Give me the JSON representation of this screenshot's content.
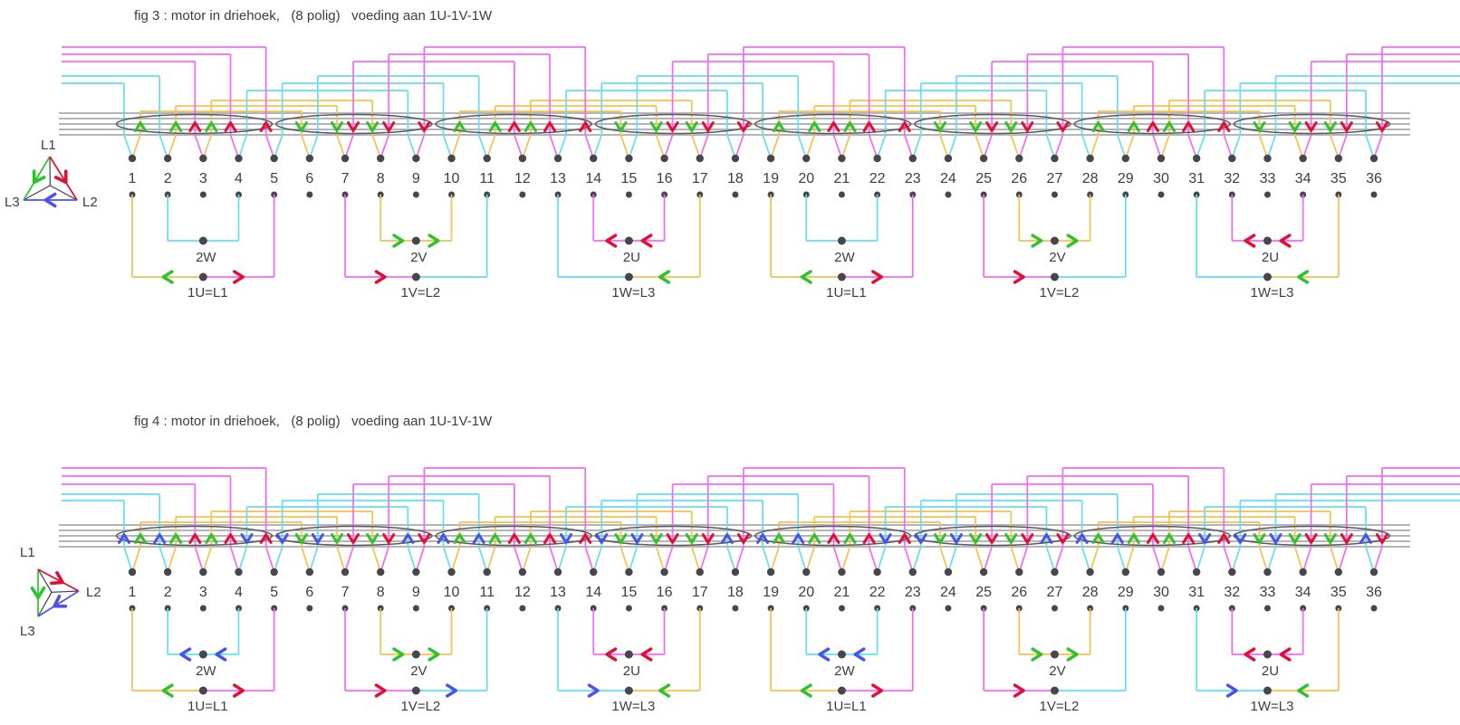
{
  "figures": [
    {
      "id": "fig3",
      "title": "fig 3 : motor in driehoek,   (8 polig)   voeding aan 1U-1V-1W",
      "cyan_band_arrows": false,
      "phasor": {
        "labels": {
          "l1": "L1",
          "l2": "L2",
          "l3": "L3"
        },
        "edges": [
          {
            "from": "L1",
            "to": "L3",
            "color": "green"
          },
          {
            "from": "L1",
            "to": "L2",
            "color": "red"
          },
          {
            "from": "L2",
            "to": "L3",
            "color": "blue"
          }
        ]
      },
      "groups": [
        {
          "base": 1,
          "bracket": {
            "label": "2W",
            "color": "cyan",
            "arrows": []
          },
          "line": {
            "label": "1U=L1",
            "left": "orange",
            "right": "magenta",
            "arrows": [
              {
                "at": 1,
                "dir": "left",
                "color": "green"
              },
              {
                "at": 3,
                "dir": "right",
                "color": "red"
              }
            ]
          }
        },
        {
          "base": 7,
          "bracket": {
            "label": "2V",
            "color": "orange",
            "arrows": [
              {
                "at": 1.5,
                "dir": "right",
                "color": "green"
              },
              {
                "at": 2.5,
                "dir": "right",
                "color": "green"
              }
            ]
          },
          "line": {
            "label": "1V=L2",
            "left": "magenta",
            "right": "cyan",
            "arrows": [
              {
                "at": 1,
                "dir": "right",
                "color": "red"
              }
            ]
          }
        },
        {
          "base": 13,
          "bracket": {
            "label": "2U",
            "color": "magenta",
            "arrows": [
              {
                "at": 1.5,
                "dir": "left",
                "color": "red"
              },
              {
                "at": 2.5,
                "dir": "left",
                "color": "red"
              }
            ]
          },
          "line": {
            "label": "1W=L3",
            "left": "cyan",
            "right": "orange",
            "arrows": [
              {
                "at": 3,
                "dir": "left",
                "color": "green"
              }
            ]
          }
        },
        {
          "base": 19,
          "bracket": {
            "label": "2W",
            "color": "cyan",
            "arrows": []
          },
          "line": {
            "label": "1U=L1",
            "left": "orange",
            "right": "magenta",
            "arrows": [
              {
                "at": 1,
                "dir": "left",
                "color": "green"
              },
              {
                "at": 3,
                "dir": "right",
                "color": "red"
              }
            ]
          }
        },
        {
          "base": 25,
          "bracket": {
            "label": "2V",
            "color": "orange",
            "arrows": [
              {
                "at": 1.5,
                "dir": "right",
                "color": "green"
              },
              {
                "at": 2.5,
                "dir": "right",
                "color": "green"
              }
            ]
          },
          "line": {
            "label": "1V=L2",
            "left": "magenta",
            "right": "cyan",
            "arrows": [
              {
                "at": 1,
                "dir": "right",
                "color": "red"
              }
            ]
          }
        },
        {
          "base": 31,
          "bracket": {
            "label": "2U",
            "color": "magenta",
            "arrows": [
              {
                "at": 1.5,
                "dir": "left",
                "color": "red"
              },
              {
                "at": 2.5,
                "dir": "left",
                "color": "red"
              }
            ]
          },
          "line": {
            "label": "1W=L3",
            "left": "cyan",
            "right": "orange",
            "arrows": [
              {
                "at": 3,
                "dir": "left",
                "color": "green"
              }
            ]
          }
        }
      ]
    },
    {
      "id": "fig4",
      "title": "fig 4 : motor in driehoek,   (8 polig)   voeding aan 1U-1V-1W",
      "cyan_band_arrows": true,
      "phasor": {
        "labels": {
          "l1": "L1",
          "l2": "L2",
          "l3": "L3"
        },
        "edges": [
          {
            "from": "L1",
            "to": "L3",
            "color": "green"
          },
          {
            "from": "L1",
            "to": "L2",
            "color": "red"
          },
          {
            "from": "L2",
            "to": "L3",
            "color": "blue"
          }
        ]
      },
      "groups": [
        {
          "base": 1,
          "bracket": {
            "label": "2W",
            "color": "cyan",
            "arrows": [
              {
                "at": 1.5,
                "dir": "left",
                "color": "blue"
              },
              {
                "at": 2.5,
                "dir": "left",
                "color": "blue"
              }
            ]
          },
          "line": {
            "label": "1U=L1",
            "left": "orange",
            "right": "magenta",
            "arrows": [
              {
                "at": 1,
                "dir": "left",
                "color": "green"
              },
              {
                "at": 3,
                "dir": "right",
                "color": "red"
              }
            ]
          }
        },
        {
          "base": 7,
          "bracket": {
            "label": "2V",
            "color": "orange",
            "arrows": [
              {
                "at": 1.5,
                "dir": "right",
                "color": "green"
              },
              {
                "at": 2.5,
                "dir": "right",
                "color": "green"
              }
            ]
          },
          "line": {
            "label": "1V=L2",
            "left": "magenta",
            "right": "cyan",
            "arrows": [
              {
                "at": 1,
                "dir": "right",
                "color": "red"
              },
              {
                "at": 3,
                "dir": "right",
                "color": "blue"
              }
            ]
          }
        },
        {
          "base": 13,
          "bracket": {
            "label": "2U",
            "color": "magenta",
            "arrows": [
              {
                "at": 1.5,
                "dir": "left",
                "color": "red"
              },
              {
                "at": 2.5,
                "dir": "left",
                "color": "red"
              }
            ]
          },
          "line": {
            "label": "1W=L3",
            "left": "cyan",
            "right": "orange",
            "arrows": [
              {
                "at": 1,
                "dir": "right",
                "color": "blue"
              },
              {
                "at": 3,
                "dir": "left",
                "color": "green"
              }
            ]
          }
        },
        {
          "base": 19,
          "bracket": {
            "label": "2W",
            "color": "cyan",
            "arrows": [
              {
                "at": 1.5,
                "dir": "left",
                "color": "blue"
              },
              {
                "at": 2.5,
                "dir": "left",
                "color": "blue"
              }
            ]
          },
          "line": {
            "label": "1U=L1",
            "left": "orange",
            "right": "magenta",
            "arrows": [
              {
                "at": 1,
                "dir": "left",
                "color": "green"
              },
              {
                "at": 3,
                "dir": "right",
                "color": "red"
              }
            ]
          }
        },
        {
          "base": 25,
          "bracket": {
            "label": "2V",
            "color": "orange",
            "arrows": [
              {
                "at": 1.5,
                "dir": "right",
                "color": "green"
              },
              {
                "at": 2.5,
                "dir": "right",
                "color": "green"
              }
            ]
          },
          "line": {
            "label": "1V=L2",
            "left": "magenta",
            "right": "cyan",
            "arrows": [
              {
                "at": 1,
                "dir": "right",
                "color": "red"
              }
            ]
          }
        },
        {
          "base": 31,
          "bracket": {
            "label": "2U",
            "color": "magenta",
            "arrows": [
              {
                "at": 1.5,
                "dir": "left",
                "color": "red"
              },
              {
                "at": 2.5,
                "dir": "left",
                "color": "red"
              }
            ]
          },
          "line": {
            "label": "1W=L3",
            "left": "cyan",
            "right": "orange",
            "arrows": [
              {
                "at": 1,
                "dir": "right",
                "color": "blue"
              },
              {
                "at": 3,
                "dir": "left",
                "color": "green"
              }
            ]
          }
        }
      ]
    }
  ],
  "slot_numbers": [
    "1",
    "2",
    "3",
    "4",
    "5",
    "6",
    "7",
    "8",
    "9",
    "10",
    "11",
    "12",
    "13",
    "14",
    "15",
    "16",
    "17",
    "18",
    "19",
    "20",
    "21",
    "22",
    "23",
    "24",
    "25",
    "26",
    "27",
    "28",
    "29",
    "30",
    "31",
    "32",
    "33",
    "34",
    "35",
    "36"
  ],
  "winding": {
    "slots": 36,
    "poles": 8,
    "coil_span": 5,
    "phase_wire_colors": {
      "slots_1_2_3_mod9": "orange",
      "slots_4_5_6_mod9": "cyan",
      "slots_7_8_9_mod9": "magenta"
    },
    "band_arrow_map": {
      "orange": "green",
      "magenta": "red",
      "cyan": "blue"
    }
  },
  "colors": {
    "magenta": "#f468f4",
    "cyan": "#62dff2",
    "orange": "#f2c14e",
    "green": "#2cc32c",
    "red": "#e00f35",
    "blue": "#4a52e8",
    "band_gray": "#9c9ca2",
    "ellipse": "#58585e",
    "dot": "#46464c",
    "text": "#3c3c42",
    "spoke": "#3f3f45",
    "background": "#ffffff"
  }
}
